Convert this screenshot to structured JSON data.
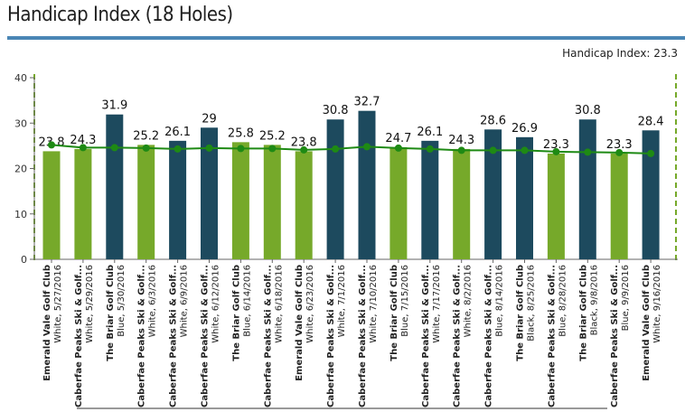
{
  "page": {
    "title": "Handicap Index (18 Holes)",
    "handicap_index_label": "Handicap Index: 23.3"
  },
  "colors": {
    "white_tee_bar": "#76a92a",
    "blue_black_tee_bar": "#1d4a5e",
    "trend_line": "#1e8a14",
    "title_rule": "#4a86b5",
    "border_dash": "#76a92a"
  },
  "chart_data": {
    "type": "bar",
    "title": "Handicap Index (18 Holes)",
    "ylim": [
      0,
      40
    ],
    "yticks": [
      0,
      10,
      20,
      30,
      40
    ],
    "grid": false,
    "categories": [
      {
        "course": "Emerald Vale Golf Club",
        "detail": "White, 5/27/2016"
      },
      {
        "course": "Caberfae Peaks Ski & Golf...",
        "detail": "White, 5/29/2016"
      },
      {
        "course": "The Briar Golf Club",
        "detail": "Blue, 5/30/2016"
      },
      {
        "course": "Caberfae Peaks Ski & Golf...",
        "detail": "White, 6/3/2016"
      },
      {
        "course": "Caberfae Peaks Ski & Golf...",
        "detail": "White, 6/9/2016"
      },
      {
        "course": "Caberfae Peaks Ski & Golf...",
        "detail": "White, 6/12/2016"
      },
      {
        "course": "The Briar Golf Club",
        "detail": "Blue, 6/14/2016"
      },
      {
        "course": "Caberfae Peaks Ski & Golf...",
        "detail": "White, 6/18/2016"
      },
      {
        "course": "Emerald Vale Golf Club",
        "detail": "White, 6/23/2016"
      },
      {
        "course": "Caberfae Peaks Ski & Golf...",
        "detail": "White, 7/1/2016"
      },
      {
        "course": "Caberfae Peaks Ski & Golf...",
        "detail": "White, 7/10/2016"
      },
      {
        "course": "The Briar Golf Club",
        "detail": "Blue, 7/15/2016"
      },
      {
        "course": "Caberfae Peaks Ski & Golf...",
        "detail": "White, 7/17/2016"
      },
      {
        "course": "Caberfae Peaks Ski & Golf...",
        "detail": "White, 8/2/2016"
      },
      {
        "course": "Caberfae Peaks Ski & Golf...",
        "detail": "Blue, 8/14/2016"
      },
      {
        "course": "The Briar Golf Club",
        "detail": "Black, 8/25/2016"
      },
      {
        "course": "Caberfae Peaks Ski & Golf...",
        "detail": "Blue, 8/28/2016"
      },
      {
        "course": "The Briar Golf Club",
        "detail": "Black, 9/8/2016"
      },
      {
        "course": "Caberfae Peaks Ski & Golf...",
        "detail": "Blue, 9/9/2016"
      },
      {
        "course": "Emerald Vale Golf Club",
        "detail": "White, 9/16/2016"
      }
    ],
    "series": [
      {
        "values": [
          23.8,
          24.3,
          31.9,
          25.2,
          26.1,
          29,
          25.8,
          25.2,
          23.8,
          30.8,
          32.7,
          24.7,
          26.1,
          24.3,
          28.6,
          26.9,
          23.3,
          30.8,
          23.3,
          28.4
        ],
        "bar_colors": [
          "green",
          "green",
          "navy",
          "green",
          "navy",
          "navy",
          "green",
          "green",
          "green",
          "navy",
          "navy",
          "green",
          "navy",
          "green",
          "navy",
          "navy",
          "green",
          "navy",
          "green",
          "navy"
        ],
        "labels": [
          "23.8",
          "24.3",
          "31.9",
          "25.2",
          "26.1",
          "29",
          "25.8",
          "25.2",
          "23.8",
          "30.8",
          "32.7",
          "24.7",
          "26.1",
          "24.3",
          "28.6",
          "26.9",
          "23.3",
          "30.8",
          "23.3",
          "28.4"
        ]
      },
      {
        "type": "line",
        "values": [
          25.2,
          24.6,
          24.6,
          24.5,
          24.3,
          24.5,
          24.4,
          24.4,
          24.1,
          24.3,
          24.8,
          24.5,
          24.3,
          24.0,
          24.0,
          24.0,
          23.7,
          23.6,
          23.5,
          23.3
        ]
      }
    ]
  }
}
